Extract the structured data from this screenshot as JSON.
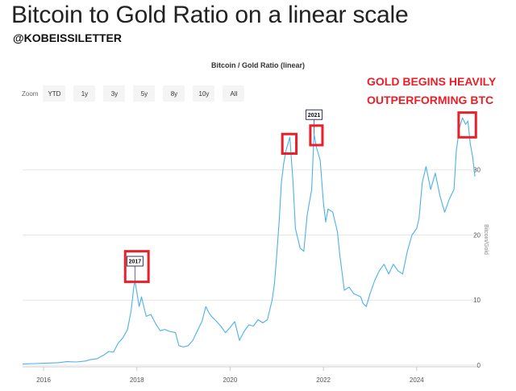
{
  "headline": "Bitcoin to Gold Ratio on a linear scale",
  "handle": "@KOBEISSILETTER",
  "annotation": [
    "GOLD BEGINS HEAVILY",
    "OUTPERFORMING BTC"
  ],
  "colors": {
    "line": "#4db0ea",
    "highlight": "#e8202a",
    "grid": "#e6e6e6"
  },
  "zoom": {
    "label": "Zoom",
    "buttons": [
      "YTD",
      "1y",
      "3y",
      "5y",
      "8y",
      "10y",
      "All"
    ]
  },
  "chart_data": {
    "type": "line",
    "title": "Bitcoin / Gold Ratio (linear)",
    "ylabel": "Bitcoin/Gold",
    "xlabel": "",
    "xlim": [
      2015.55,
      2025.3
    ],
    "ylim": [
      0,
      39
    ],
    "yticks": [
      0,
      10,
      20,
      30
    ],
    "xticks": [
      2016,
      2018,
      2020,
      2022,
      2024
    ],
    "series": [
      {
        "name": "Bitcoin / Gold",
        "points": [
          [
            2015.55,
            0.2
          ],
          [
            2015.8,
            0.25
          ],
          [
            2016.0,
            0.3
          ],
          [
            2016.3,
            0.38
          ],
          [
            2016.5,
            0.55
          ],
          [
            2016.7,
            0.5
          ],
          [
            2016.9,
            0.65
          ],
          [
            2017.0,
            0.85
          ],
          [
            2017.15,
            1.0
          ],
          [
            2017.3,
            1.6
          ],
          [
            2017.4,
            2.1
          ],
          [
            2017.5,
            2.0
          ],
          [
            2017.6,
            3.4
          ],
          [
            2017.7,
            4.2
          ],
          [
            2017.8,
            5.5
          ],
          [
            2017.88,
            8.5
          ],
          [
            2017.93,
            11.8
          ],
          [
            2017.96,
            13.0
          ],
          [
            2018.0,
            11.2
          ],
          [
            2018.05,
            9.0
          ],
          [
            2018.1,
            10.5
          ],
          [
            2018.2,
            7.5
          ],
          [
            2018.3,
            7.8
          ],
          [
            2018.4,
            6.4
          ],
          [
            2018.5,
            5.3
          ],
          [
            2018.6,
            5.5
          ],
          [
            2018.7,
            5.2
          ],
          [
            2018.83,
            5.0
          ],
          [
            2018.9,
            3.0
          ],
          [
            2019.0,
            2.8
          ],
          [
            2019.1,
            3.0
          ],
          [
            2019.2,
            3.8
          ],
          [
            2019.3,
            5.3
          ],
          [
            2019.4,
            6.8
          ],
          [
            2019.48,
            9.0
          ],
          [
            2019.55,
            8.0
          ],
          [
            2019.6,
            7.5
          ],
          [
            2019.7,
            6.8
          ],
          [
            2019.8,
            6.0
          ],
          [
            2019.9,
            5.0
          ],
          [
            2020.0,
            5.8
          ],
          [
            2020.1,
            6.7
          ],
          [
            2020.2,
            3.8
          ],
          [
            2020.3,
            5.2
          ],
          [
            2020.4,
            6.2
          ],
          [
            2020.5,
            6.0
          ],
          [
            2020.6,
            7.0
          ],
          [
            2020.7,
            6.5
          ],
          [
            2020.8,
            7.0
          ],
          [
            2020.85,
            8.5
          ],
          [
            2020.9,
            10.0
          ],
          [
            2020.95,
            12.5
          ],
          [
            2021.0,
            17.0
          ],
          [
            2021.05,
            22.0
          ],
          [
            2021.1,
            28.0
          ],
          [
            2021.15,
            31.0
          ],
          [
            2021.2,
            33.0
          ],
          [
            2021.28,
            35.0
          ],
          [
            2021.35,
            28.0
          ],
          [
            2021.4,
            21.0
          ],
          [
            2021.5,
            18.0
          ],
          [
            2021.58,
            17.5
          ],
          [
            2021.65,
            23.0
          ],
          [
            2021.75,
            27.0
          ],
          [
            2021.8,
            35.5
          ],
          [
            2021.85,
            33.5
          ],
          [
            2021.93,
            31.5
          ],
          [
            2022.0,
            25.0
          ],
          [
            2022.05,
            22.0
          ],
          [
            2022.1,
            24.0
          ],
          [
            2022.2,
            23.5
          ],
          [
            2022.3,
            20.5
          ],
          [
            2022.35,
            17.0
          ],
          [
            2022.45,
            11.5
          ],
          [
            2022.55,
            12.0
          ],
          [
            2022.65,
            11.0
          ],
          [
            2022.8,
            10.5
          ],
          [
            2022.85,
            9.5
          ],
          [
            2022.92,
            9.0
          ],
          [
            2023.0,
            11.0
          ],
          [
            2023.1,
            13.0
          ],
          [
            2023.2,
            14.5
          ],
          [
            2023.3,
            15.5
          ],
          [
            2023.4,
            14.0
          ],
          [
            2023.5,
            15.5
          ],
          [
            2023.6,
            14.5
          ],
          [
            2023.7,
            14.0
          ],
          [
            2023.8,
            17.5
          ],
          [
            2023.9,
            20.0
          ],
          [
            2024.0,
            21.0
          ],
          [
            2024.05,
            22.5
          ],
          [
            2024.12,
            28.0
          ],
          [
            2024.2,
            30.5
          ],
          [
            2024.3,
            27.0
          ],
          [
            2024.4,
            29.5
          ],
          [
            2024.5,
            26.0
          ],
          [
            2024.6,
            23.5
          ],
          [
            2024.7,
            25.5
          ],
          [
            2024.8,
            27.0
          ],
          [
            2024.85,
            33.0
          ],
          [
            2024.92,
            36.5
          ],
          [
            2024.98,
            38.0
          ],
          [
            2025.05,
            37.0
          ],
          [
            2025.1,
            37.5
          ],
          [
            2025.15,
            34.0
          ],
          [
            2025.2,
            32.0
          ],
          [
            2025.25,
            29.0
          ]
        ]
      }
    ],
    "flags": [
      {
        "label": "2017",
        "x": 2017.96,
        "y": 13.0
      },
      {
        "label": "2021",
        "x": 2021.8,
        "y": 35.5
      }
    ],
    "highlights": [
      {
        "name": "2017-peak",
        "x0": 2017.75,
        "x1": 2018.25,
        "y0": 12.8,
        "y1": 17.5
      },
      {
        "name": "2021-early-peak",
        "x0": 2021.12,
        "x1": 2021.42,
        "y0": 32.5,
        "y1": 35.5
      },
      {
        "name": "2021-late-peak",
        "x0": 2021.72,
        "x1": 2021.98,
        "y0": 33.8,
        "y1": 36.8
      },
      {
        "name": "2025-peak",
        "x0": 2024.9,
        "x1": 2025.27,
        "y0": 35.0,
        "y1": 38.8
      }
    ]
  }
}
